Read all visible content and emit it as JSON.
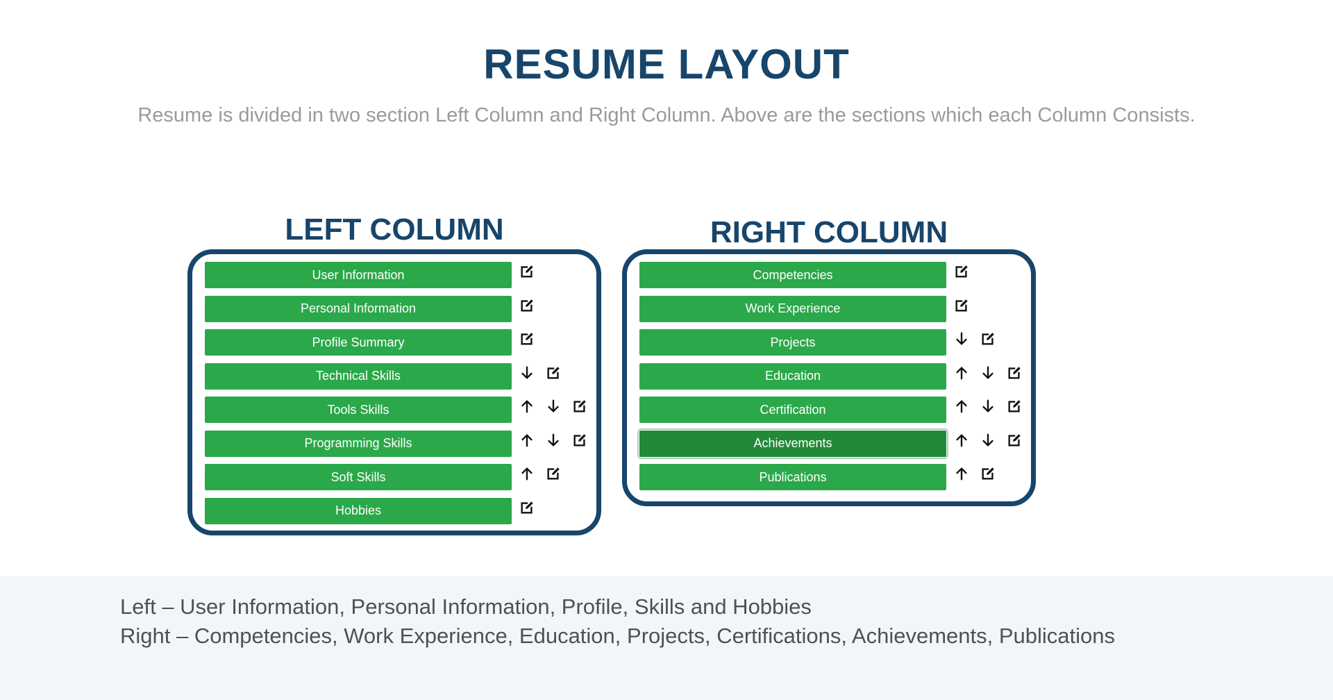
{
  "page": {
    "title": "RESUME LAYOUT",
    "subtitle": "Resume is divided in two section Left Column and Right Column. Above are the sections which each Column Consists."
  },
  "left_column": {
    "heading": "LEFT COLUMN",
    "items": [
      {
        "label": "User Information",
        "icons": [
          "edit-icon"
        ]
      },
      {
        "label": "Personal Information",
        "icons": [
          "edit-icon"
        ]
      },
      {
        "label": "Profile Summary",
        "icons": [
          "edit-icon"
        ]
      },
      {
        "label": "Technical Skills",
        "icons": [
          "arrow-down-icon",
          "edit-icon"
        ]
      },
      {
        "label": "Tools Skills",
        "icons": [
          "arrow-up-icon",
          "arrow-down-icon",
          "edit-icon"
        ]
      },
      {
        "label": "Programming Skills",
        "icons": [
          "arrow-up-icon",
          "arrow-down-icon",
          "edit-icon"
        ]
      },
      {
        "label": "Soft Skills",
        "icons": [
          "arrow-up-icon",
          "edit-icon"
        ]
      },
      {
        "label": "Hobbies",
        "icons": [
          "edit-icon"
        ]
      }
    ]
  },
  "right_column": {
    "heading": "RIGHT COLUMN",
    "items": [
      {
        "label": "Competencies",
        "icons": [
          "edit-icon"
        ]
      },
      {
        "label": "Work Experience",
        "icons": [
          "edit-icon"
        ]
      },
      {
        "label": "Projects",
        "icons": [
          "arrow-down-icon",
          "edit-icon"
        ]
      },
      {
        "label": "Education",
        "icons": [
          "arrow-up-icon",
          "arrow-down-icon",
          "edit-icon"
        ]
      },
      {
        "label": "Certification",
        "icons": [
          "arrow-up-icon",
          "arrow-down-icon",
          "edit-icon"
        ]
      },
      {
        "label": "Achievements",
        "icons": [
          "arrow-up-icon",
          "arrow-down-icon",
          "edit-icon"
        ],
        "active": true
      },
      {
        "label": "Publications",
        "icons": [
          "arrow-up-icon",
          "edit-icon"
        ]
      }
    ]
  },
  "footer": {
    "line1": "Left – User Information, Personal Information, Profile, Skills and Hobbies",
    "line2": "Right – Competencies, Work Experience, Education, Projects, Certifications, Achievements, Publications"
  },
  "colors": {
    "accent": "#17456b",
    "button": "#2ba84a",
    "button_active": "#228937",
    "subtitle": "#9a9a9a",
    "footer_bg": "#f2f6fa"
  }
}
